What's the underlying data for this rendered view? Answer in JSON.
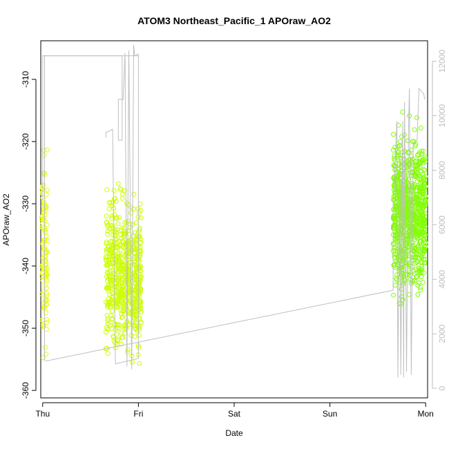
{
  "chart_data": {
    "type": "scatter",
    "title": "ATOM3 Northeast_Pacific_1 APOraw_AO2",
    "xlabel": "Date",
    "ylabel": "APOraw_AO2",
    "x_ticks": [
      "Thu",
      "Fri",
      "Sat",
      "Sun",
      "Mon"
    ],
    "xlim": [
      -0.02,
      4.02
    ],
    "ylim": [
      -361.2,
      -303.8
    ],
    "y_ticks": [
      -360,
      -350,
      -340,
      -330,
      -320,
      -310
    ],
    "y2lim": [
      -350,
      12750
    ],
    "y2_ticks": [
      0,
      2000,
      4000,
      6000,
      8000,
      10000,
      12000
    ],
    "grid": false,
    "series": [
      {
        "marker": "open-circle",
        "colors": [
          "#e6ff00",
          "#ccff00",
          "#80ff00"
        ],
        "clusters": [
          {
            "x_start": -0.01,
            "x_end": 0.05,
            "y_center": -338,
            "y_spread": 8.5,
            "y_min": -355,
            "y_max": -319.8,
            "count": 110,
            "color": "#e6ff00"
          },
          {
            "x_start": 0.66,
            "x_end": 1.03,
            "y_center": -341.5,
            "y_spread": 6.5,
            "y_min": -359,
            "y_max": -318.3,
            "count": 650,
            "color": "#ccff00"
          },
          {
            "x_start": 3.66,
            "x_end": 4.0,
            "y_center": -331.5,
            "y_spread": 6.5,
            "y_min": -353.5,
            "y_max": -305.2,
            "count": 850,
            "color": "#80ff00"
          }
        ]
      },
      {
        "axis": "right",
        "color": "#bebebe",
        "points": [
          [
            0.0,
            6900
          ],
          [
            0.0,
            12200
          ],
          [
            0.83,
            12200
          ],
          [
            0.83,
            9100
          ],
          [
            0.79,
            9100
          ],
          [
            0.79,
            10600
          ],
          [
            0.84,
            10600
          ],
          [
            0.86,
            12300
          ],
          [
            0.88,
            800
          ],
          [
            0.9,
            12400
          ],
          [
            0.93,
            700
          ],
          [
            0.95,
            12600
          ],
          [
            0.96,
            12200
          ],
          [
            0.99,
            12250
          ],
          [
            1.0,
            12250
          ],
          [
            1.0,
            1100
          ],
          [
            0.76,
            900
          ],
          [
            0.73,
            9500
          ],
          [
            0.67,
            9400
          ],
          [
            0.66,
            9400
          ],
          [
            0.66,
            9200
          ]
        ],
        "segments": [
          [
            [
              0.0,
              12200
            ],
            [
              1.0,
              12200
            ]
          ],
          [
            [
              0.02,
              12200
            ],
            [
              0.02,
              1000
            ]
          ],
          [
            [
              0.03,
              1000
            ],
            [
              3.66,
              3600
            ]
          ]
        ],
        "end_block": [
          [
            3.66,
            3600
          ],
          [
            3.66,
            6800
          ],
          [
            3.7,
            9800
          ],
          [
            3.71,
            400
          ],
          [
            3.73,
            8600
          ],
          [
            3.74,
            500
          ],
          [
            3.76,
            9800
          ],
          [
            3.77,
            400
          ],
          [
            3.78,
            10500
          ],
          [
            3.8,
            600
          ],
          [
            3.82,
            9400
          ],
          [
            3.83,
            11000
          ],
          [
            3.85,
            500
          ],
          [
            3.87,
            9000
          ],
          [
            3.91,
            9100
          ],
          [
            3.93,
            11000
          ],
          [
            3.98,
            10800
          ],
          [
            3.99,
            10600
          ]
        ]
      }
    ]
  }
}
